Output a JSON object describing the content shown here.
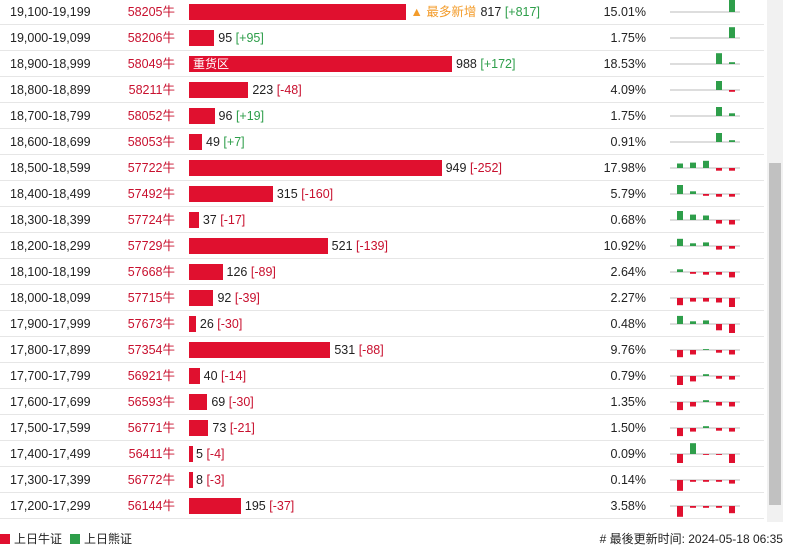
{
  "rows": [
    {
      "range": "19,100-19,199",
      "code": "58205牛",
      "count": 817,
      "change": {
        "value": 817,
        "label": "[+817]"
      },
      "pct": "15.01%",
      "note": "▲ 最多新增",
      "spark": [
        0,
        0,
        0,
        0,
        14
      ]
    },
    {
      "range": "19,000-19,099",
      "code": "58206牛",
      "count": 95,
      "change": {
        "value": 95,
        "label": "[+95]"
      },
      "pct": "1.75%",
      "spark": [
        0,
        0,
        0,
        0,
        12
      ]
    },
    {
      "range": "18,900-18,999",
      "code": "58049牛",
      "count": 988,
      "change": {
        "value": 172,
        "label": "[+172]"
      },
      "pct": "18.53%",
      "bar_label": "重货区",
      "spark": [
        0,
        0,
        0,
        12,
        2
      ]
    },
    {
      "range": "18,800-18,899",
      "code": "58211牛",
      "count": 223,
      "change": {
        "value": -48,
        "label": "[-48]"
      },
      "pct": "4.09%",
      "spark": [
        0,
        0,
        0,
        10,
        -2
      ]
    },
    {
      "range": "18,700-18,799",
      "code": "58052牛",
      "count": 96,
      "change": {
        "value": 19,
        "label": "[+19]"
      },
      "pct": "1.75%",
      "spark": [
        0,
        0,
        0,
        10,
        3
      ]
    },
    {
      "range": "18,600-18,699",
      "code": "58053牛",
      "count": 49,
      "change": {
        "value": 7,
        "label": "[+7]"
      },
      "pct": "0.91%",
      "spark": [
        0,
        0,
        0,
        10,
        2
      ]
    },
    {
      "range": "18,500-18,599",
      "code": "57722牛",
      "count": 949,
      "change": {
        "value": -252,
        "label": "[-252]"
      },
      "pct": "17.98%",
      "spark": [
        5,
        6,
        8,
        -3,
        -3
      ]
    },
    {
      "range": "18,400-18,499",
      "code": "57492牛",
      "count": 315,
      "change": {
        "value": -160,
        "label": "[-160]"
      },
      "pct": "5.79%",
      "spark": [
        10,
        3,
        -2,
        -3,
        -3
      ]
    },
    {
      "range": "18,300-18,399",
      "code": "57724牛",
      "count": 37,
      "change": {
        "value": -17,
        "label": "[-17]"
      },
      "pct": "0.68%",
      "spark": [
        10,
        6,
        5,
        -4,
        -5
      ]
    },
    {
      "range": "18,200-18,299",
      "code": "57729牛",
      "count": 521,
      "change": {
        "value": -139,
        "label": "[-139]"
      },
      "pct": "10.92%",
      "spark": [
        8,
        3,
        4,
        -4,
        -3
      ]
    },
    {
      "range": "18,100-18,199",
      "code": "57668牛",
      "count": 126,
      "change": {
        "value": -89,
        "label": "[-89]"
      },
      "pct": "2.64%",
      "spark": [
        3,
        -2,
        -3,
        -3,
        -6
      ]
    },
    {
      "range": "18,000-18,099",
      "code": "57715牛",
      "count": 92,
      "change": {
        "value": -39,
        "label": "[-39]"
      },
      "pct": "2.27%",
      "spark": [
        -8,
        -4,
        -4,
        -5,
        -10
      ]
    },
    {
      "range": "17,900-17,999",
      "code": "57673牛",
      "count": 26,
      "change": {
        "value": -30,
        "label": "[-30]"
      },
      "pct": "0.48%",
      "spark": [
        9,
        3,
        4,
        -7,
        -10
      ]
    },
    {
      "range": "17,800-17,899",
      "code": "57354牛",
      "count": 531,
      "change": {
        "value": -88,
        "label": "[-88]"
      },
      "pct": "9.76%",
      "spark": [
        -8,
        -5,
        1,
        -3,
        -5
      ]
    },
    {
      "range": "17,700-17,799",
      "code": "56921牛",
      "count": 40,
      "change": {
        "value": -14,
        "label": "[-14]"
      },
      "pct": "0.79%",
      "spark": [
        -10,
        -6,
        2,
        -3,
        -4
      ]
    },
    {
      "range": "17,600-17,699",
      "code": "56593牛",
      "count": 69,
      "change": {
        "value": -30,
        "label": "[-30]"
      },
      "pct": "1.35%",
      "spark": [
        -9,
        -5,
        2,
        -4,
        -5
      ]
    },
    {
      "range": "17,500-17,599",
      "code": "56771牛",
      "count": 73,
      "change": {
        "value": -21,
        "label": "[-21]"
      },
      "pct": "1.50%",
      "spark": [
        -9,
        -4,
        2,
        -3,
        -4
      ]
    },
    {
      "range": "17,400-17,499",
      "code": "56411牛",
      "count": 5,
      "change": {
        "value": -4,
        "label": "[-4]"
      },
      "pct": "0.09%",
      "spark": [
        -10,
        12,
        -1,
        -1,
        -10
      ]
    },
    {
      "range": "17,300-17,399",
      "code": "56772牛",
      "count": 8,
      "change": {
        "value": -3,
        "label": "[-3]"
      },
      "pct": "0.14%",
      "spark": [
        -12,
        -2,
        -2,
        -2,
        -4
      ]
    },
    {
      "range": "17,200-17,299",
      "code": "56144牛",
      "count": 195,
      "change": {
        "value": -37,
        "label": "[-37]"
      },
      "pct": "3.58%",
      "spark": [
        -12,
        -2,
        -2,
        -2,
        -8
      ]
    }
  ],
  "legend": [
    {
      "label": "上日牛证",
      "color": "#e0102f"
    },
    {
      "label": "上日熊证",
      "color": "#2e9e4a"
    }
  ],
  "footer": "# 最後更新时间: 2024-05-18 06:35"
}
